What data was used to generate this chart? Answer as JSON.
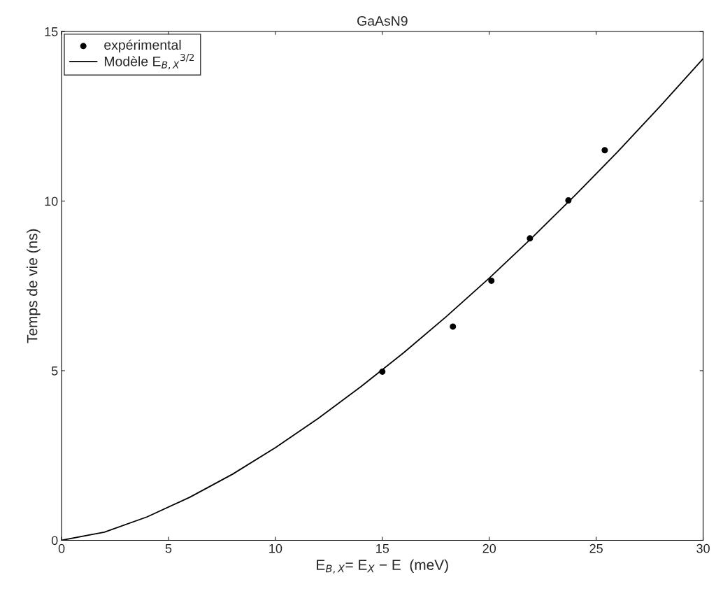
{
  "chart_data": {
    "type": "scatter",
    "title": "GaAsN9",
    "xlabel": "E$_{B,X}$= E$_{X}$ − E  (meV)",
    "ylabel": "Temps de vie (ns)",
    "series": [
      {
        "name": "expérimental",
        "color": "#000000",
        "marker": "circle",
        "x": [
          15.0,
          18.3,
          20.1,
          21.9,
          23.7,
          25.4
        ],
        "values": [
          4.97,
          6.3,
          7.65,
          8.9,
          10.02,
          11.5
        ]
      },
      {
        "name": "Modèle E$_{B,X}$$^{3/2}$",
        "type": "line",
        "color": "#000000",
        "marker": "none",
        "line_style": "solid",
        "x": [
          0,
          2,
          4,
          6,
          8,
          10,
          12,
          14,
          16,
          18,
          20,
          22,
          24,
          26,
          28,
          30
        ],
        "values": [
          0,
          0.24,
          0.69,
          1.27,
          1.95,
          2.73,
          3.59,
          4.53,
          5.53,
          6.6,
          7.73,
          8.92,
          10.16,
          11.45,
          12.8,
          14.2
        ]
      }
    ],
    "xlim": [
      0,
      30
    ],
    "ylim": [
      0,
      15
    ],
    "xticks": [
      0,
      5,
      10,
      15,
      20,
      25,
      30
    ],
    "yticks": [
      0,
      5,
      10,
      15
    ],
    "grid": false,
    "legend": "top left"
  }
}
